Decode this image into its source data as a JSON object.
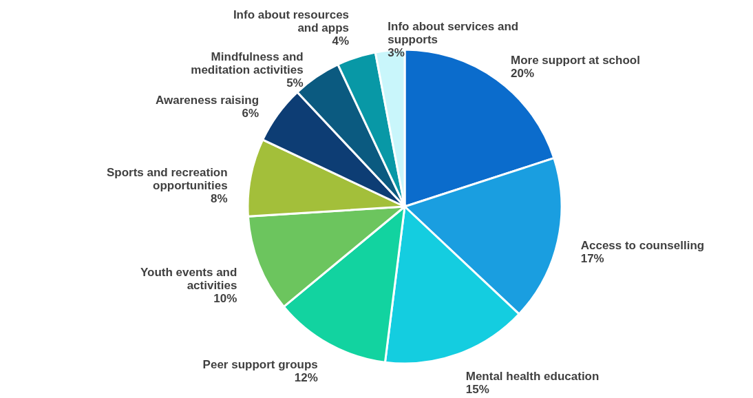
{
  "chart_data": {
    "type": "pie",
    "categories": [
      "More support at school",
      "Access to counselling",
      "Mental health education",
      "Peer support groups",
      "Youth events and activities",
      "Sports and recreation opportunities",
      "Awareness raising",
      "Mindfulness and meditation activities",
      "Info about resources and apps",
      "Info about services and supports"
    ],
    "values": [
      20,
      17,
      15,
      12,
      10,
      8,
      6,
      5,
      4,
      3
    ],
    "value_labels": [
      "20%",
      "17%",
      "15%",
      "12%",
      "10%",
      "8%",
      "6%",
      "5%",
      "4%",
      "3%"
    ],
    "colors": [
      "#0b6ccc",
      "#1a9ee0",
      "#14cde0",
      "#12d3a0",
      "#6cc55e",
      "#a3bf3a",
      "#0d3d74",
      "#0b5a80",
      "#0898a6",
      "#c9f6fb"
    ]
  }
}
